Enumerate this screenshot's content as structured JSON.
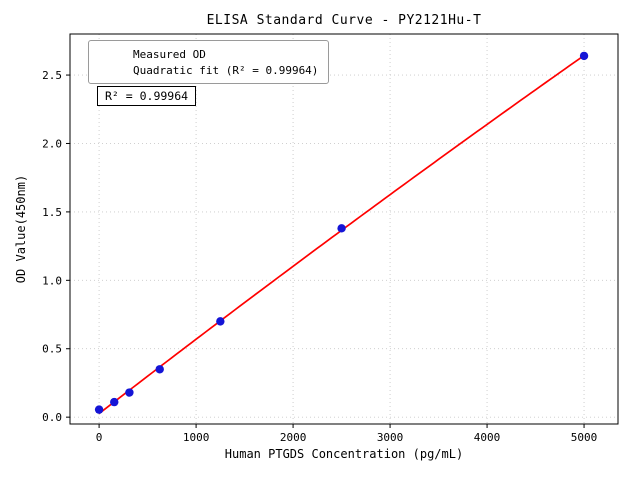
{
  "chart_data": {
    "type": "scatter",
    "title": "ELISA Standard Curve - PY2121Hu-T",
    "xlabel": "Human PTGDS Concentration (pg/mL)",
    "ylabel": "OD Value(450nm)",
    "xlim": [
      -300,
      5350
    ],
    "ylim": [
      -0.05,
      2.8
    ],
    "xticks": [
      0,
      1000,
      2000,
      3000,
      4000,
      5000
    ],
    "yticks": [
      0.0,
      0.5,
      1.0,
      1.5,
      2.0,
      2.5
    ],
    "grid": true,
    "grid_style": "dotted",
    "colors": {
      "points": "#1414d6",
      "fit": "#ff0000",
      "grid": "#c9c9c9",
      "frame": "#000000"
    },
    "series": [
      {
        "name": "Measured OD",
        "type": "scatter",
        "x": [
          0,
          156.25,
          312.5,
          625,
          1250,
          2500,
          5000
        ],
        "y": [
          0.055,
          0.11,
          0.18,
          0.35,
          0.7,
          1.38,
          2.64
        ]
      },
      {
        "name": "Quadratic fit",
        "type": "quadratic_fit",
        "x_range": [
          0,
          5000
        ]
      }
    ],
    "legend": {
      "position": "upper-left",
      "entries": [
        {
          "label": "Measured OD",
          "marker": "dot",
          "color": "#1414d6"
        },
        {
          "label": "Quadratic fit (R² = 0.99964)",
          "marker": "line",
          "color": "#ff0000"
        }
      ]
    },
    "annotation": {
      "text": "R² = 0.99964"
    },
    "r_squared": 0.99964
  }
}
